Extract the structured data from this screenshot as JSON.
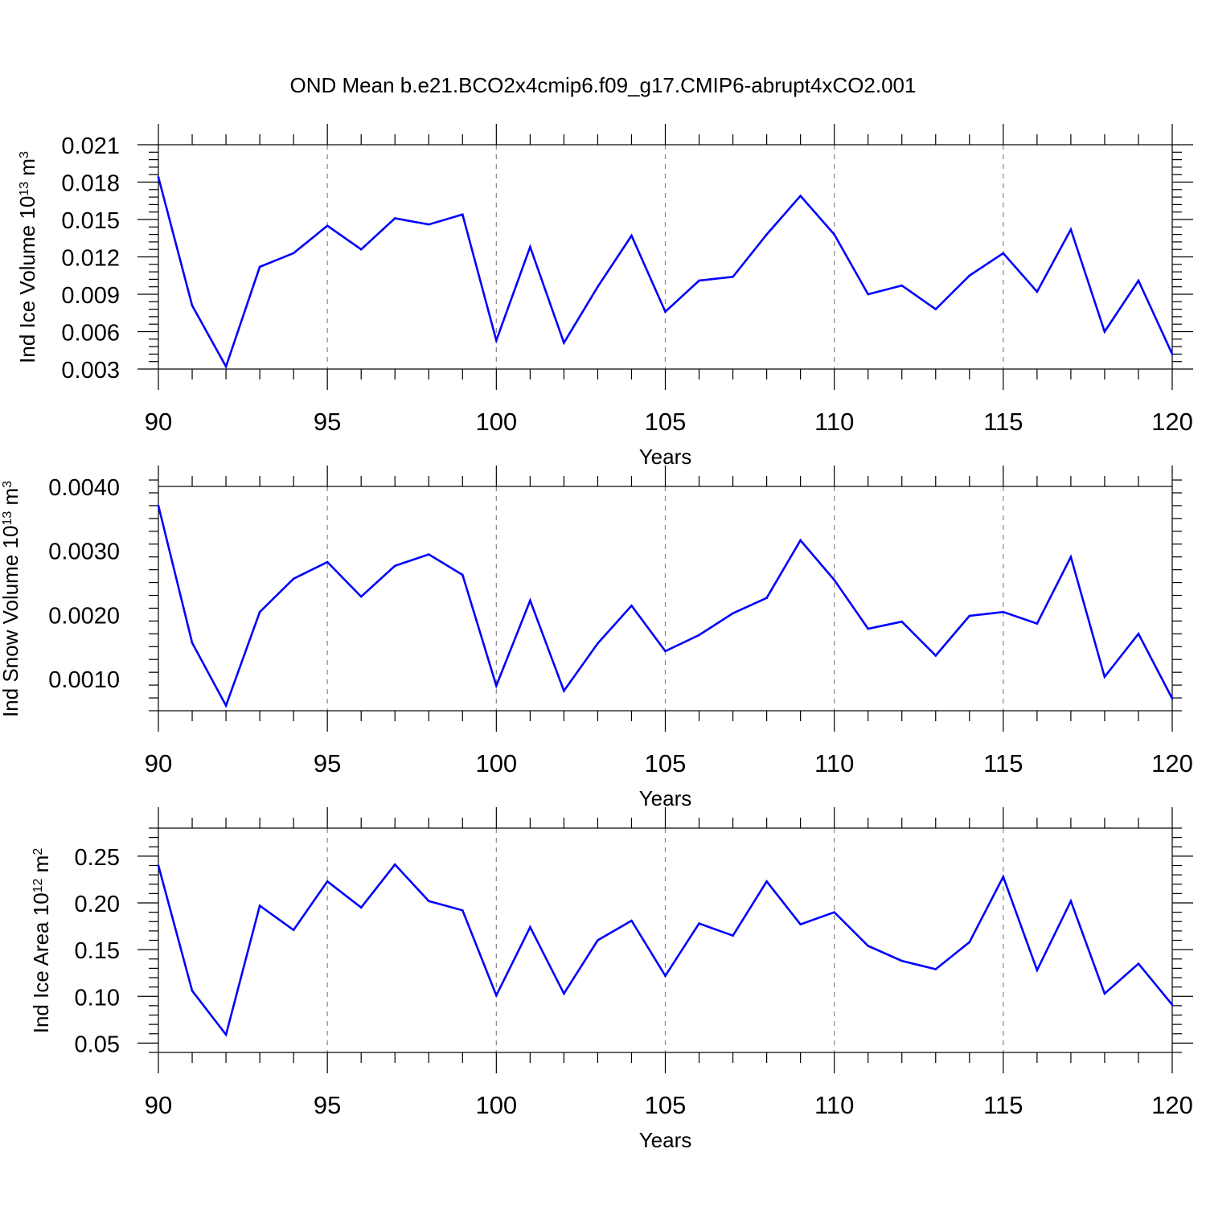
{
  "title": "OND Mean b.e21.BCO2x4cmip6.f09_g17.CMIP6-abrupt4xCO2.001",
  "line_color": "#0000ff",
  "chart_data": [
    {
      "type": "line",
      "xlabel": "Years",
      "ylabel": {
        "text": "Ind Ice Volume 10",
        "sup": "13",
        "unit": " m",
        "unit_sup": "3"
      },
      "xlim": [
        90,
        120
      ],
      "ylim": [
        0.003,
        0.021
      ],
      "xticks": [
        90,
        95,
        100,
        105,
        110,
        115,
        120
      ],
      "xtick_labels": [
        "90",
        "95",
        "100",
        "105",
        "110",
        "115",
        "120"
      ],
      "yticks": [
        0.003,
        0.006,
        0.009,
        0.012,
        0.015,
        0.018,
        0.021
      ],
      "ytick_labels": [
        "0.003",
        "0.006",
        "0.009",
        "0.012",
        "0.015",
        "0.018",
        "0.021"
      ],
      "grid": "vertical dashed at major x ticks",
      "x": [
        90,
        91,
        92,
        93,
        94,
        95,
        96,
        97,
        98,
        99,
        100,
        101,
        102,
        103,
        104,
        105,
        106,
        107,
        108,
        109,
        110,
        111,
        112,
        113,
        114,
        115,
        116,
        117,
        118,
        119,
        120
      ],
      "y": [
        0.0184,
        0.0081,
        0.0032,
        0.0112,
        0.0123,
        0.0145,
        0.0126,
        0.0151,
        0.0146,
        0.0154,
        0.0053,
        0.0128,
        0.0051,
        0.0096,
        0.0137,
        0.0076,
        0.0101,
        0.0104,
        0.0138,
        0.0169,
        0.0138,
        0.009,
        0.0097,
        0.0078,
        0.0105,
        0.0123,
        0.0092,
        0.0142,
        0.006,
        0.0101,
        0.0042
      ]
    },
    {
      "type": "line",
      "xlabel": "Years",
      "ylabel": {
        "text": "Ind Snow Volume 10",
        "sup": "13",
        "unit": " m",
        "unit_sup": "3"
      },
      "xlim": [
        90,
        120
      ],
      "ylim": [
        0.0005,
        0.004
      ],
      "xticks": [
        90,
        95,
        100,
        105,
        110,
        115,
        120
      ],
      "xtick_labels": [
        "90",
        "95",
        "100",
        "105",
        "110",
        "115",
        "120"
      ],
      "yticks": [
        0.001,
        0.002,
        0.003,
        0.004
      ],
      "ytick_labels": [
        "0.0010",
        "0.0020",
        "0.0030",
        "0.0040"
      ],
      "grid": "vertical dashed at major x ticks",
      "x": [
        90,
        91,
        92,
        93,
        94,
        95,
        96,
        97,
        98,
        99,
        100,
        101,
        102,
        103,
        104,
        105,
        106,
        107,
        108,
        109,
        110,
        111,
        112,
        113,
        114,
        115,
        116,
        117,
        118,
        119,
        120
      ],
      "y": [
        0.0037,
        0.00156,
        0.00058,
        0.00204,
        0.00256,
        0.00282,
        0.00228,
        0.00276,
        0.00294,
        0.00262,
        0.00089,
        0.00222,
        0.00081,
        0.00155,
        0.00214,
        0.00143,
        0.00168,
        0.00202,
        0.00226,
        0.00316,
        0.00254,
        0.00178,
        0.00189,
        0.00136,
        0.00198,
        0.00204,
        0.00186,
        0.0029,
        0.00103,
        0.0017,
        0.00069
      ]
    },
    {
      "type": "line",
      "xlabel": "Years",
      "ylabel": {
        "text": "Ind Ice Area 10",
        "sup": "12",
        "unit": " m",
        "unit_sup": "2"
      },
      "xlim": [
        90,
        120
      ],
      "ylim": [
        0.04,
        0.28
      ],
      "xticks": [
        90,
        95,
        100,
        105,
        110,
        115,
        120
      ],
      "xtick_labels": [
        "90",
        "95",
        "100",
        "105",
        "110",
        "115",
        "120"
      ],
      "yticks": [
        0.05,
        0.1,
        0.15,
        0.2,
        0.25
      ],
      "ytick_labels": [
        "0.05",
        "0.10",
        "0.15",
        "0.20",
        "0.25"
      ],
      "grid": "vertical dashed at major x ticks",
      "x": [
        90,
        91,
        92,
        93,
        94,
        95,
        96,
        97,
        98,
        99,
        100,
        101,
        102,
        103,
        104,
        105,
        106,
        107,
        108,
        109,
        110,
        111,
        112,
        113,
        114,
        115,
        116,
        117,
        118,
        119,
        120
      ],
      "y": [
        0.24,
        0.106,
        0.059,
        0.197,
        0.171,
        0.223,
        0.195,
        0.241,
        0.202,
        0.192,
        0.101,
        0.174,
        0.103,
        0.16,
        0.181,
        0.122,
        0.178,
        0.165,
        0.223,
        0.177,
        0.19,
        0.154,
        0.138,
        0.129,
        0.158,
        0.228,
        0.128,
        0.202,
        0.103,
        0.135,
        0.091
      ]
    }
  ]
}
